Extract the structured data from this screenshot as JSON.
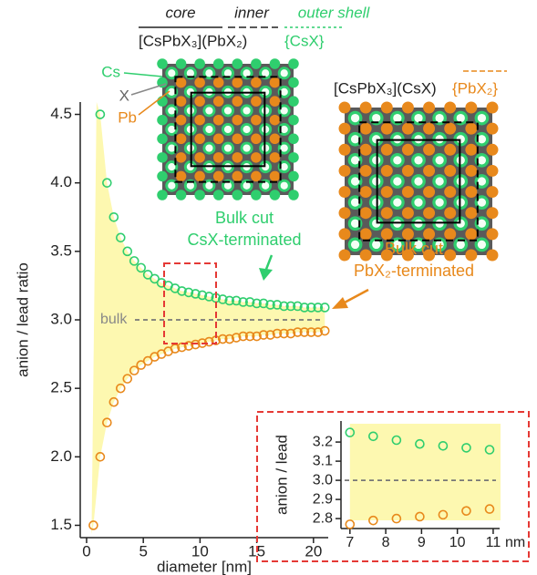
{
  "chart_data": [
    {
      "type": "scatter",
      "xlabel": "diameter [nm]",
      "ylabel": "anion / lead ratio",
      "xlim": [
        -0.56,
        21.3
      ],
      "ylim": [
        1.41,
        4.59
      ],
      "xticks": [
        0,
        5,
        10,
        15,
        20
      ],
      "yticks": [
        1.5,
        {
          "value": 2,
          "label": "2.0"
        },
        2.5,
        {
          "value": 3,
          "label": "3.0"
        },
        3.5,
        {
          "value": 4,
          "label": "4.0"
        },
        4.5
      ],
      "bulk": 3,
      "bulk_label": "bulk",
      "band_color": "#fdf8b0",
      "series": [
        {
          "name": "CsX-terminated",
          "color": "#2fce6e",
          "x": [
            1.2,
            1.8,
            2.4,
            3.0,
            3.6,
            4.2,
            4.8,
            5.4,
            6.0,
            6.6,
            7.2,
            7.8,
            8.4,
            9.0,
            9.6,
            10.2,
            10.8,
            11.4,
            12.0,
            12.6,
            13.2,
            13.8,
            14.4,
            15.0,
            15.6,
            16.2,
            16.8,
            17.4,
            18.0,
            18.6,
            19.2,
            19.8,
            20.4,
            21.0
          ],
          "values": [
            4.5,
            4.0,
            3.75,
            3.6,
            3.5,
            3.43,
            3.38,
            3.33,
            3.3,
            3.27,
            3.25,
            3.23,
            3.21,
            3.2,
            3.19,
            3.18,
            3.17,
            3.16,
            3.15,
            3.14,
            3.14,
            3.13,
            3.13,
            3.12,
            3.12,
            3.11,
            3.11,
            3.1,
            3.1,
            3.1,
            3.09,
            3.09,
            3.09,
            3.09
          ]
        },
        {
          "name": "PbX₂-terminated",
          "color": "#e8891c",
          "x": [
            0.6,
            1.2,
            1.8,
            2.4,
            3.0,
            3.6,
            4.2,
            4.8,
            5.4,
            6.0,
            6.6,
            7.2,
            7.8,
            8.4,
            9.0,
            9.6,
            10.2,
            10.8,
            11.4,
            12.0,
            12.6,
            13.2,
            13.8,
            14.4,
            15.0,
            15.6,
            16.2,
            16.8,
            17.4,
            18.0,
            18.6,
            19.2,
            19.8,
            20.4,
            21.0
          ],
          "values": [
            1.5,
            2.0,
            2.25,
            2.4,
            2.5,
            2.57,
            2.63,
            2.67,
            2.7,
            2.73,
            2.75,
            2.77,
            2.79,
            2.8,
            2.81,
            2.82,
            2.83,
            2.84,
            2.85,
            2.86,
            2.86,
            2.87,
            2.88,
            2.88,
            2.88,
            2.89,
            2.89,
            2.9,
            2.9,
            2.9,
            2.91,
            2.91,
            2.91,
            2.91,
            2.92
          ]
        }
      ]
    },
    {
      "type": "scatter",
      "xlabel": "nm",
      "ylabel": "anion / lead",
      "xlim": [
        6.75,
        11.18
      ],
      "ylim": [
        2.748,
        3.31
      ],
      "xticks": [
        7,
        8,
        9,
        10,
        11
      ],
      "yticks": [
        2.8,
        2.9,
        {
          "value": 3,
          "label": "3.0"
        },
        3.1,
        3.2
      ],
      "bulk": 3,
      "band_color": "#fdf8b0",
      "series": [
        {
          "name": "CsX-terminated",
          "color": "#2fce6e",
          "x": [
            7.0,
            7.65,
            8.3,
            8.95,
            9.6,
            10.25,
            10.9
          ],
          "values": [
            3.25,
            3.23,
            3.21,
            3.19,
            3.18,
            3.17,
            3.16
          ]
        },
        {
          "name": "PbX₂-terminated",
          "color": "#e8891c",
          "x": [
            7.0,
            7.65,
            8.3,
            8.95,
            9.6,
            10.25,
            10.9
          ],
          "values": [
            2.77,
            2.79,
            2.8,
            2.81,
            2.82,
            2.84,
            2.85
          ]
        }
      ]
    }
  ],
  "schematic": {
    "core": "core",
    "inner": "inner",
    "outer_shell": "outer shell",
    "left_formula": "[CsPbX₃](PbX₂)",
    "left_shell": "{CsX}",
    "cs": "Cs",
    "x": "X",
    "pb": "Pb",
    "right_formula": "[CsPbX₃](CsX)",
    "right_shell": "{PbX₂}",
    "green_cut": "Bulk cut",
    "green_term": "CsX-terminated",
    "orange_cut": "Bulk cut",
    "orange_term": "PbX₂-terminated"
  }
}
